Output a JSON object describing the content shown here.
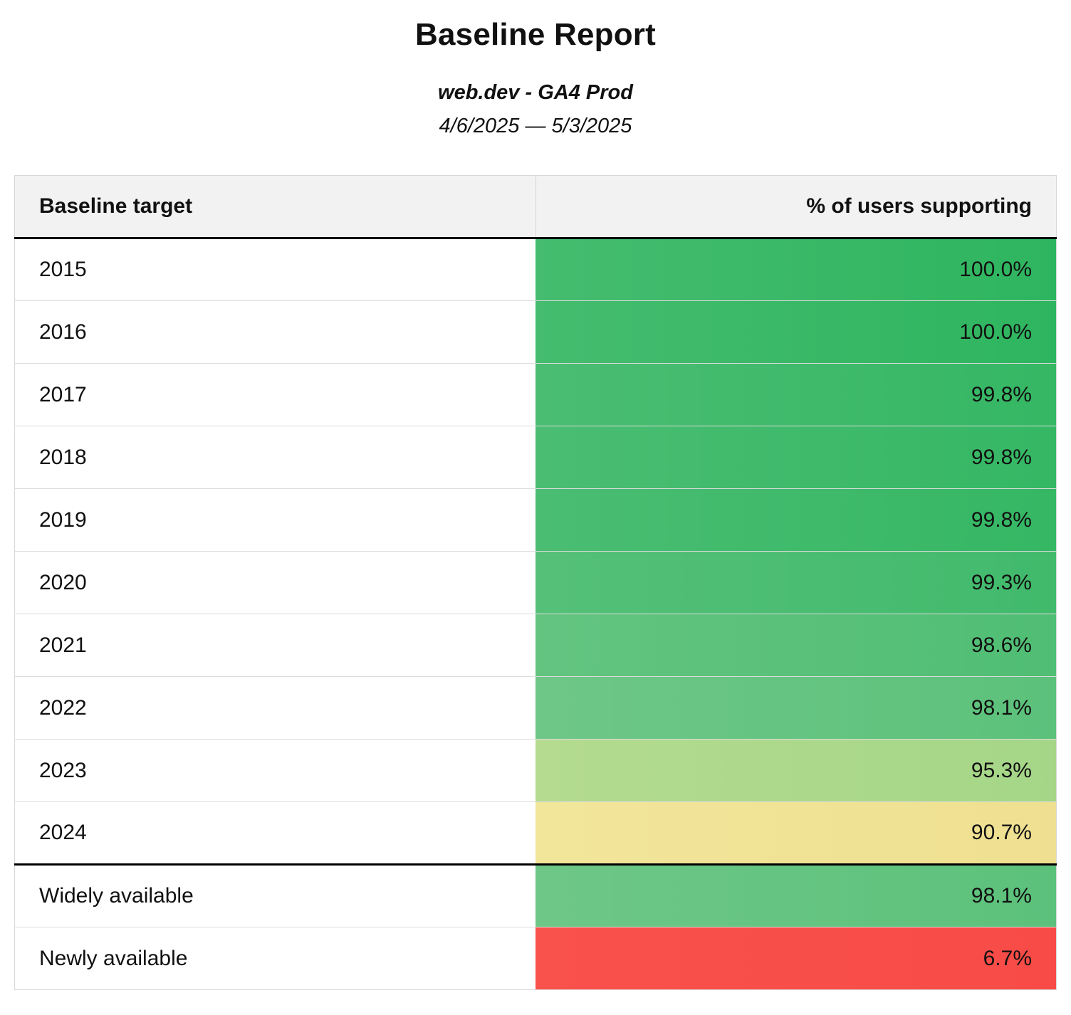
{
  "header": {
    "title": "Baseline Report",
    "subtitle": "web.dev - GA4 Prod",
    "date_range": "4/6/2025 — 5/3/2025"
  },
  "table": {
    "columns": {
      "target": "Baseline target",
      "support": "% of users supporting"
    },
    "rows": [
      {
        "label": "2015",
        "value": "100.0%",
        "pct": 100.0,
        "color_start": "#45bc6f",
        "color_end": "#2eb55f"
      },
      {
        "label": "2016",
        "value": "100.0%",
        "pct": 100.0,
        "color_start": "#45bc6f",
        "color_end": "#2eb55f"
      },
      {
        "label": "2017",
        "value": "99.8%",
        "pct": 99.8,
        "color_start": "#4abd72",
        "color_end": "#35b764"
      },
      {
        "label": "2018",
        "value": "99.8%",
        "pct": 99.8,
        "color_start": "#4abd72",
        "color_end": "#35b764"
      },
      {
        "label": "2019",
        "value": "99.8%",
        "pct": 99.8,
        "color_start": "#4abd72",
        "color_end": "#35b764"
      },
      {
        "label": "2020",
        "value": "99.3%",
        "pct": 99.3,
        "color_start": "#55c078",
        "color_end": "#41ba6c"
      },
      {
        "label": "2021",
        "value": "98.6%",
        "pct": 98.6,
        "color_start": "#63c480",
        "color_end": "#50be74"
      },
      {
        "label": "2022",
        "value": "98.1%",
        "pct": 98.1,
        "color_start": "#6ec787",
        "color_end": "#5cc17b"
      },
      {
        "label": "2023",
        "value": "95.3%",
        "pct": 95.3,
        "color_start": "#b4db90",
        "color_end": "#a5d687"
      },
      {
        "label": "2024",
        "value": "90.7%",
        "pct": 90.7,
        "color_start": "#f2e69b",
        "color_end": "#efe091"
      },
      {
        "label": "Widely available",
        "value": "98.1%",
        "pct": 98.1,
        "color_start": "#6ec787",
        "color_end": "#5cc17b"
      },
      {
        "label": "Newly available",
        "value": "6.7%",
        "pct": 6.7,
        "color_start": "#f9514c",
        "color_end": "#f84b47"
      }
    ]
  },
  "chart_data": {
    "type": "table",
    "title": "Baseline Report",
    "subtitle": "web.dev - GA4 Prod",
    "date_range": "4/6/2025 — 5/3/2025",
    "columns": [
      "Baseline target",
      "% of users supporting"
    ],
    "categories": [
      "2015",
      "2016",
      "2017",
      "2018",
      "2019",
      "2020",
      "2021",
      "2022",
      "2023",
      "2024",
      "Widely available",
      "Newly available"
    ],
    "values": [
      100.0,
      100.0,
      99.8,
      99.8,
      99.8,
      99.3,
      98.6,
      98.1,
      95.3,
      90.7,
      98.1,
      6.7
    ],
    "value_format": "percent",
    "color_scale": "red-yellow-green"
  }
}
